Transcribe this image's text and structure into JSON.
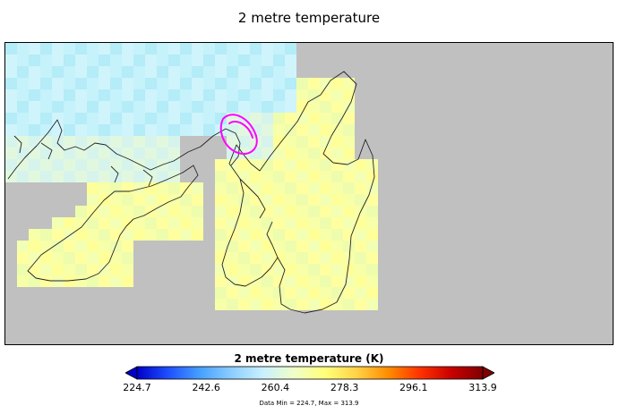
{
  "title": "2 metre temperature",
  "colorbar": {
    "label": "2 metre temperature (K)",
    "ticks": [
      "224.7",
      "242.6",
      "260.4",
      "278.3",
      "296.1",
      "313.9"
    ],
    "min": 224.7,
    "max": 313.9,
    "stops": [
      "#0000c8",
      "#1e50ff",
      "#46a0ff",
      "#8ccdff",
      "#c8f0ff",
      "#f0ffc8",
      "#ffff78",
      "#ffd246",
      "#ff8c00",
      "#ff3200",
      "#c80000",
      "#800000"
    ]
  },
  "stats": {
    "text": "Data Min = 224.7, Max = 313.9"
  },
  "map": {
    "background_color": "#c0c0c0",
    "marker_color": "#ff00ff"
  }
}
